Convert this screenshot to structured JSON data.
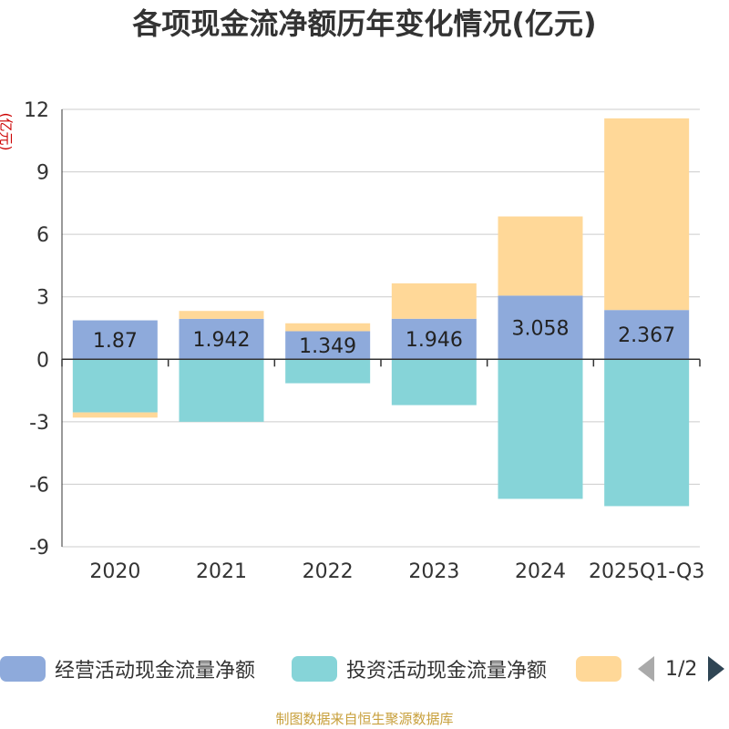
{
  "chart_data": {
    "type": "bar",
    "stacked": true,
    "title": "各项现金流净额历年变化情况(亿元)",
    "ylabel": "(亿元)",
    "ylim": [
      -9,
      12
    ],
    "yticks": [
      12,
      9,
      6,
      3,
      0,
      -3,
      -6,
      -9
    ],
    "categories": [
      "2020",
      "2021",
      "2022",
      "2023",
      "2024",
      "2025Q1-Q3"
    ],
    "series": [
      {
        "name": "经营活动现金流量净额",
        "color": "#8eaadb",
        "values": [
          1.87,
          1.942,
          1.349,
          1.946,
          3.058,
          2.367
        ],
        "labels": [
          "1.87",
          "1.942",
          "1.349",
          "1.946",
          "3.058",
          "2.367"
        ]
      },
      {
        "name": "投资活动现金流量净额",
        "color": "#86d4d8",
        "values": [
          -2.55,
          -3.0,
          -1.15,
          -2.2,
          -6.7,
          -7.05
        ]
      },
      {
        "name": "",
        "color": "#ffd898",
        "values": [
          -0.25,
          0.38,
          0.38,
          1.7,
          3.8,
          9.2
        ]
      }
    ]
  },
  "legend": {
    "items": [
      {
        "label": "经营活动现金流量净额",
        "color": "#8eaadb"
      },
      {
        "label": "投资活动现金流量净额",
        "color": "#86d4d8"
      },
      {
        "label": "",
        "color": "#ffd898"
      }
    ],
    "page": "1/2"
  },
  "source_note": "制图数据来自恒生聚源数据库"
}
